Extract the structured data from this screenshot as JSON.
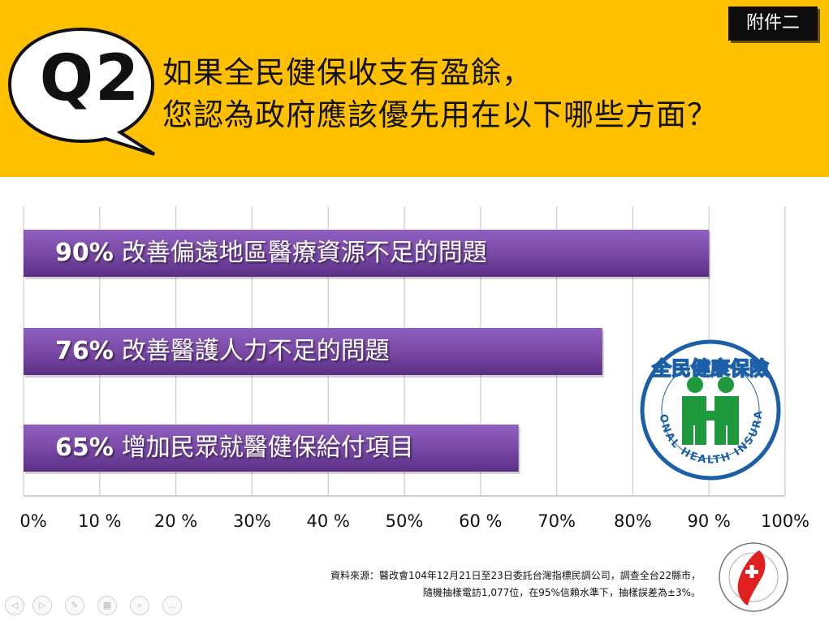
{
  "badge": "附件二",
  "question": {
    "label": "Q2",
    "title_lines": [
      "如果全民健保收支有盈餘，",
      "您認為政府應該優先用在以下哪些方面？"
    ]
  },
  "chart_data": {
    "type": "bar",
    "orientation": "horizontal",
    "categories": [
      "改善偏遠地區醫療資源不足的問題",
      "改善醫護人力不足的問題",
      "增加民眾就醫健保給付項目"
    ],
    "values": [
      90,
      76,
      65
    ],
    "value_labels": [
      "90%",
      "76%",
      "65%"
    ],
    "xlim": [
      0,
      100
    ],
    "x_ticks": [
      0,
      10,
      20,
      30,
      40,
      50,
      60,
      70,
      80,
      90,
      100
    ],
    "x_tick_labels": [
      "0%",
      "10 %",
      "20 %",
      "30%",
      "40 %",
      "50%",
      "60 %",
      "70%",
      "80%",
      "90 %",
      "100%"
    ],
    "grid": "vertical",
    "bar_color": "#7A4AA6"
  },
  "logo": {
    "name": "全民健康保險",
    "subtitle": "NATIONAL HEALTH INSURANCE"
  },
  "source": {
    "line1": "資料來源：醫改會104年12月21日至23日委託台灣指標民調公司，調查全台22縣市，",
    "line2": "隨機抽樣電訪1,077位，在95%信賴水準下，抽樣誤差為±3%。"
  },
  "colors": {
    "header": "#FFC000",
    "bar": "#7A4AA6",
    "nhi_green": "#1E9A3D",
    "nhi_blue": "#1B5FA8"
  }
}
